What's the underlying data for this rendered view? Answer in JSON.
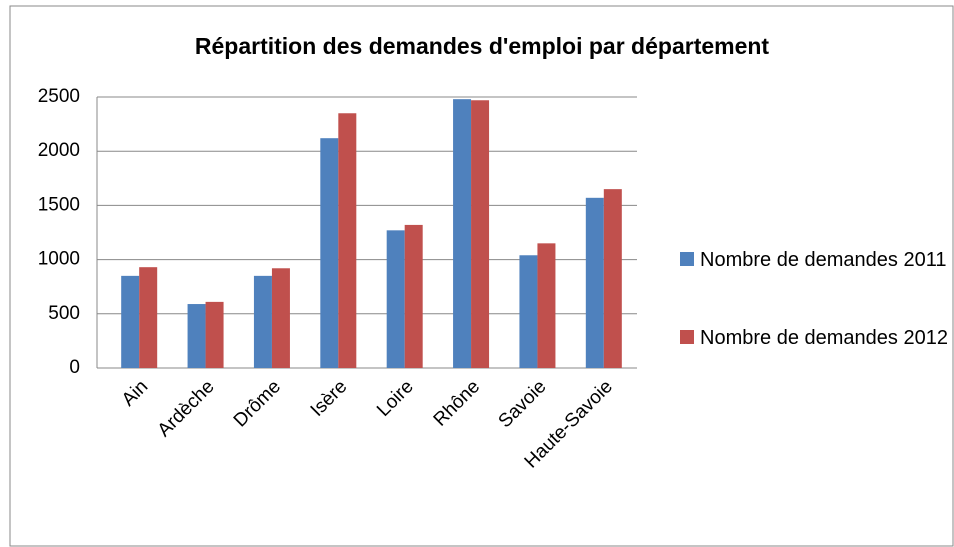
{
  "chart_data": {
    "type": "bar",
    "title": "Répartition des demandes d'emploi par département",
    "categories": [
      "Ain",
      "Ardèche",
      "Drôme",
      "Isère",
      "Loire",
      "Rhône",
      "Savoie",
      "Haute-Savoie"
    ],
    "series": [
      {
        "name": "Nombre de demandes 2011",
        "color": "#4f81bd",
        "values": [
          850,
          590,
          850,
          2120,
          1270,
          2480,
          1040,
          1570
        ]
      },
      {
        "name": "Nombre de demandes 2012",
        "color": "#c0504d",
        "values": [
          930,
          610,
          920,
          2350,
          1320,
          2470,
          1150,
          1650
        ]
      }
    ],
    "ylim": [
      0,
      2500
    ],
    "yticks": [
      0,
      500,
      1000,
      1500,
      2000,
      2500
    ],
    "grid": true,
    "legend": "right"
  }
}
